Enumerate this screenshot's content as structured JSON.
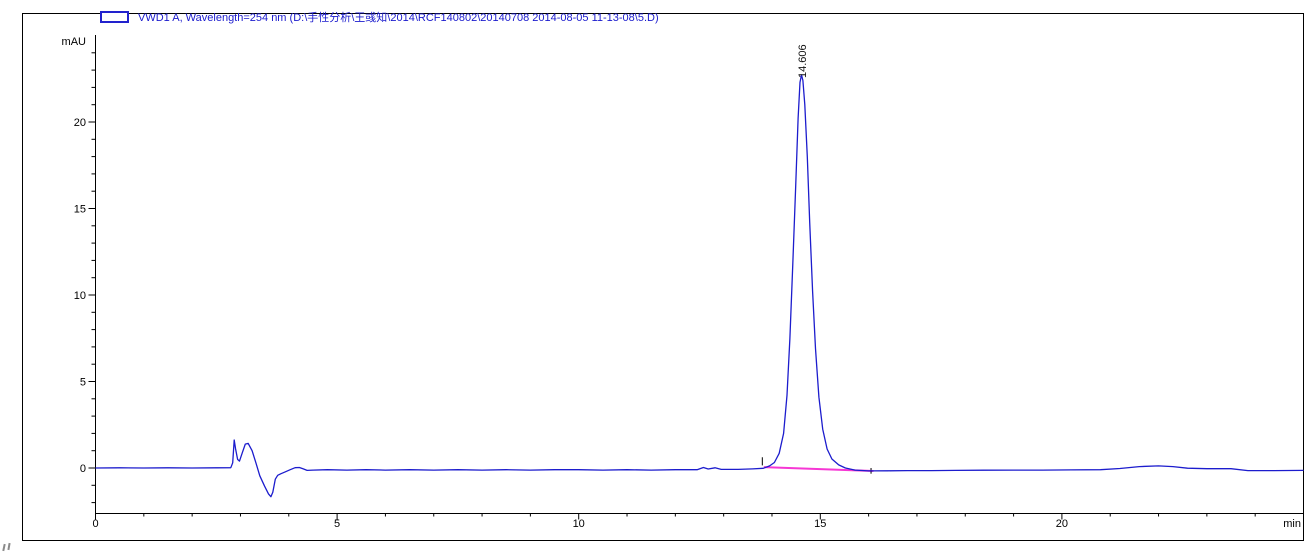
{
  "legend": {
    "swatch_color": "#2222cd",
    "label": "VWD1 A, Wavelength=254 nm (D:\\手性分析\\王彧知\\2014\\RCF140802\\20140708 2014-08-05 11-13-08\\5.D)"
  },
  "chart_data": {
    "type": "line",
    "title": "",
    "xlabel": "min",
    "ylabel": "mAU",
    "xlim": [
      0,
      25
    ],
    "ylim": [
      -2.6,
      25
    ],
    "x_major_ticks": [
      0,
      5,
      10,
      15,
      20
    ],
    "x_minor_step": 1,
    "y_major_ticks": [
      0,
      5,
      10,
      15,
      20
    ],
    "y_minor_step": 1,
    "grid": false,
    "legend_position": "top-left",
    "series": [
      {
        "name": "VWD1 A, Wavelength=254 nm",
        "color": "#1c1ccd",
        "points": [
          [
            0,
            0
          ],
          [
            0.5,
            0.01
          ],
          [
            1,
            0
          ],
          [
            1.5,
            0.01
          ],
          [
            2,
            0
          ],
          [
            2.5,
            0.01
          ],
          [
            2.8,
            0.02
          ],
          [
            2.84,
            0.3
          ],
          [
            2.87,
            1.62
          ],
          [
            2.9,
            1.1
          ],
          [
            2.94,
            0.5
          ],
          [
            2.98,
            0.4
          ],
          [
            3.04,
            0.9
          ],
          [
            3.1,
            1.38
          ],
          [
            3.16,
            1.42
          ],
          [
            3.24,
            1.0
          ],
          [
            3.32,
            0.3
          ],
          [
            3.4,
            -0.45
          ],
          [
            3.5,
            -1.05
          ],
          [
            3.58,
            -1.5
          ],
          [
            3.63,
            -1.66
          ],
          [
            3.67,
            -1.4
          ],
          [
            3.72,
            -0.65
          ],
          [
            3.77,
            -0.42
          ],
          [
            3.84,
            -0.33
          ],
          [
            3.93,
            -0.22
          ],
          [
            4.03,
            -0.1
          ],
          [
            4.13,
            0.02
          ],
          [
            4.22,
            0.03
          ],
          [
            4.3,
            -0.05
          ],
          [
            4.38,
            -0.14
          ],
          [
            4.5,
            -0.12
          ],
          [
            4.8,
            -0.1
          ],
          [
            5.2,
            -0.12
          ],
          [
            5.6,
            -0.1
          ],
          [
            6,
            -0.12
          ],
          [
            6.5,
            -0.1
          ],
          [
            7,
            -0.12
          ],
          [
            7.5,
            -0.1
          ],
          [
            8,
            -0.12
          ],
          [
            8.5,
            -0.1
          ],
          [
            9,
            -0.12
          ],
          [
            9.5,
            -0.1
          ],
          [
            10,
            -0.1
          ],
          [
            10.5,
            -0.12
          ],
          [
            11,
            -0.1
          ],
          [
            11.5,
            -0.12
          ],
          [
            12,
            -0.1
          ],
          [
            12.45,
            -0.1
          ],
          [
            12.58,
            0.03
          ],
          [
            12.68,
            -0.06
          ],
          [
            12.82,
            0.01
          ],
          [
            12.95,
            -0.08
          ],
          [
            13.3,
            -0.08
          ],
          [
            13.6,
            -0.05
          ],
          [
            13.82,
            -0.02
          ],
          [
            13.95,
            0.12
          ],
          [
            14.05,
            0.32
          ],
          [
            14.15,
            0.85
          ],
          [
            14.24,
            2.0
          ],
          [
            14.31,
            4.2
          ],
          [
            14.37,
            7.5
          ],
          [
            14.43,
            11.8
          ],
          [
            14.49,
            16.3
          ],
          [
            14.54,
            20.2
          ],
          [
            14.58,
            22.3
          ],
          [
            14.61,
            22.72
          ],
          [
            14.64,
            22.4
          ],
          [
            14.68,
            21.0
          ],
          [
            14.73,
            18.0
          ],
          [
            14.78,
            14.2
          ],
          [
            14.84,
            10.2
          ],
          [
            14.9,
            6.9
          ],
          [
            14.97,
            4.1
          ],
          [
            15.05,
            2.25
          ],
          [
            15.14,
            1.1
          ],
          [
            15.24,
            0.52
          ],
          [
            15.38,
            0.18
          ],
          [
            15.52,
            0.0
          ],
          [
            15.72,
            -0.12
          ],
          [
            16,
            -0.17
          ],
          [
            16.4,
            -0.16
          ],
          [
            16.8,
            -0.15
          ],
          [
            17.3,
            -0.15
          ],
          [
            17.8,
            -0.14
          ],
          [
            18.4,
            -0.13
          ],
          [
            19,
            -0.12
          ],
          [
            19.6,
            -0.12
          ],
          [
            20.2,
            -0.11
          ],
          [
            20.8,
            -0.1
          ],
          [
            21.2,
            -0.03
          ],
          [
            21.6,
            0.08
          ],
          [
            22,
            0.12
          ],
          [
            22.3,
            0.08
          ],
          [
            22.6,
            -0.01
          ],
          [
            23,
            -0.04
          ],
          [
            23.5,
            -0.04
          ],
          [
            23.85,
            -0.15
          ],
          [
            24.4,
            -0.15
          ],
          [
            25,
            -0.14
          ]
        ]
      }
    ],
    "peaks": [
      {
        "label": "14.606",
        "retention_time_min": 14.606,
        "height_mAU": 22.7
      }
    ],
    "integration": {
      "color": "#f637d4",
      "baseline": [
        [
          13.83,
          0.05
        ],
        [
          16.1,
          -0.17
        ]
      ],
      "markers": [
        {
          "t": 13.8,
          "v1": 0.15,
          "v2": 0.62
        },
        {
          "t": 16.05,
          "v1": -0.33,
          "v2": 0.0
        }
      ]
    }
  }
}
